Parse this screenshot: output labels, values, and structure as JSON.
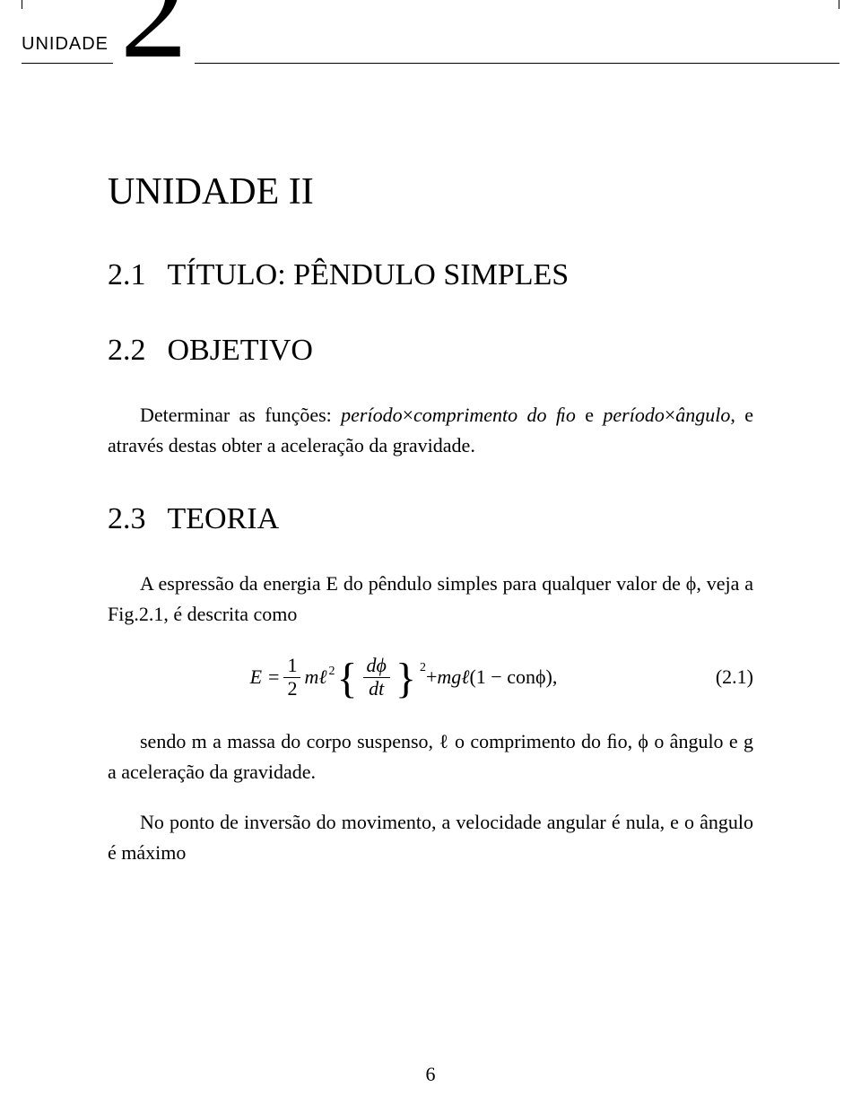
{
  "chapter": {
    "label": "UNIDADE",
    "number": "2",
    "title": "UNIDADE II"
  },
  "section1": {
    "number": "2.1",
    "title": "TÍTULO: PÊNDULO SIMPLES"
  },
  "section2": {
    "number": "2.2",
    "title": "OBJETIVO",
    "p1_pre": "Determinar as funções: ",
    "p1_i1": "período",
    "p1_mid1": "×",
    "p1_i2": "comprimento do ﬁo",
    "p1_mid2": " e ",
    "p1_i3": "período",
    "p1_mid3": "×",
    "p1_i4": "ângulo",
    "p1_post": ", e através destas obter a aceleração da gravidade."
  },
  "section3": {
    "number": "2.3",
    "title": "TEORIA",
    "p1": "A espressão da energia E do pêndulo simples para qualquer valor de ϕ, veja a Fig.2.1, é descrita como",
    "eq": {
      "lhs": "E =",
      "half_num": "1",
      "half_den": "2",
      "m": "m",
      "ell": "ℓ",
      "sq1": "2",
      "lbrace": "{",
      "dphi": "dϕ",
      "dt": "dt",
      "rbrace": "}",
      "sq2": "2",
      "plus": " + ",
      "mg": "mg",
      "ell2": "ℓ",
      "paren": "(1 − conϕ),",
      "label": "(2.1)"
    },
    "p2_pre": "sendo m a massa do corpo suspenso, ℓ o comprimento do ﬁo, ϕ o ângulo e g a aceleração da gravidade.",
    "p3": "No ponto de inversão do movimento, a velocidade angular é nula, e o ângulo é máximo"
  },
  "pageNumber": "6",
  "colors": {
    "bg": "#ffffff",
    "fg": "#000000"
  }
}
